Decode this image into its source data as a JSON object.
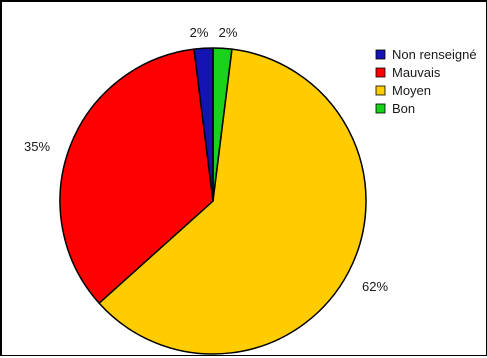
{
  "chart_data": {
    "type": "pie",
    "slices": [
      {
        "label": "Bon",
        "value": 2,
        "display": "2%",
        "color": "#19d219"
      },
      {
        "label": "Moyen",
        "value": 62,
        "display": "62%",
        "color": "#ffcc00"
      },
      {
        "label": "Mauvais",
        "value": 35,
        "display": "35%",
        "color": "#ff0000"
      },
      {
        "label": "Non renseigné",
        "value": 2,
        "display": "2%",
        "color": "#1414b4"
      }
    ],
    "legend": {
      "position": "top-right",
      "items": [
        {
          "label": "Non renseigné",
          "color": "#1414b4"
        },
        {
          "label": "Mauvais",
          "color": "#ff0000"
        },
        {
          "label": "Moyen",
          "color": "#ffcc00"
        },
        {
          "label": "Bon",
          "color": "#19d219"
        }
      ]
    },
    "start_angle_deg": 0,
    "direction": "clockwise"
  }
}
